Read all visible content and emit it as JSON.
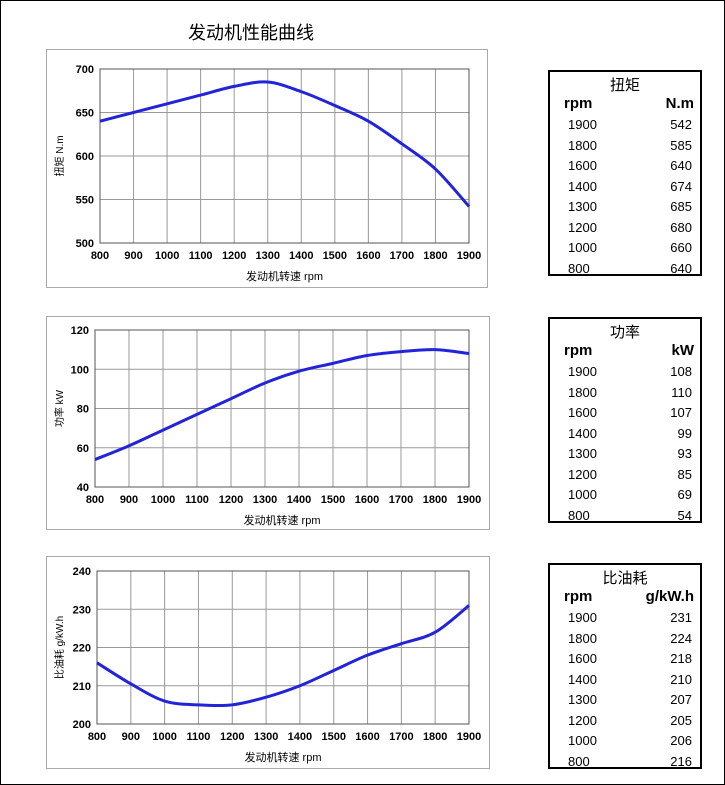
{
  "title": "发动机性能曲线",
  "chart_data": [
    {
      "type": "line",
      "xlabel": "发动机转速 rpm",
      "ylabel": "扭矩 N.m",
      "xlim": [
        800,
        1900
      ],
      "ylim": [
        500,
        700
      ],
      "xticks": [
        800,
        900,
        1000,
        1100,
        1200,
        1300,
        1400,
        1500,
        1600,
        1700,
        1800,
        1900
      ],
      "yticks": [
        500,
        550,
        600,
        650,
        700
      ],
      "grid": true,
      "color": "#2323d8",
      "x": [
        800,
        900,
        1000,
        1100,
        1200,
        1300,
        1400,
        1500,
        1600,
        1700,
        1800,
        1900
      ],
      "y": [
        640,
        650,
        660,
        670,
        680,
        685,
        674,
        658,
        640,
        614,
        585,
        542
      ]
    },
    {
      "type": "line",
      "xlabel": "发动机转速 rpm",
      "ylabel": "功率 kW",
      "xlim": [
        800,
        1900
      ],
      "ylim": [
        40,
        120
      ],
      "xticks": [
        800,
        900,
        1000,
        1100,
        1200,
        1300,
        1400,
        1500,
        1600,
        1700,
        1800,
        1900
      ],
      "yticks": [
        40,
        60,
        80,
        100,
        120
      ],
      "grid": true,
      "color": "#2323d8",
      "x": [
        800,
        900,
        1000,
        1100,
        1200,
        1300,
        1400,
        1500,
        1600,
        1700,
        1800,
        1900
      ],
      "y": [
        54,
        61,
        69,
        77,
        85,
        93,
        99,
        103,
        107,
        109,
        110,
        108
      ]
    },
    {
      "type": "line",
      "xlabel": "发动机转速 rpm",
      "ylabel": "比油耗 g/kW.h",
      "xlim": [
        800,
        1900
      ],
      "ylim": [
        200,
        240
      ],
      "xticks": [
        800,
        900,
        1000,
        1100,
        1200,
        1300,
        1400,
        1500,
        1600,
        1700,
        1800,
        1900
      ],
      "yticks": [
        200,
        210,
        220,
        230,
        240
      ],
      "grid": true,
      "color": "#2323d8",
      "x": [
        800,
        900,
        1000,
        1100,
        1200,
        1300,
        1400,
        1500,
        1600,
        1700,
        1800,
        1900
      ],
      "y": [
        216,
        210.5,
        206,
        205,
        205,
        207,
        210,
        214,
        218,
        221,
        224,
        231
      ]
    }
  ],
  "tables": [
    {
      "title": "扭矩",
      "col1": "rpm",
      "col2": "N.m",
      "rows": [
        [
          "1900",
          "542"
        ],
        [
          "1800",
          "585"
        ],
        [
          "1600",
          "640"
        ],
        [
          "1400",
          "674"
        ],
        [
          "1300",
          "685"
        ],
        [
          "1200",
          "680"
        ],
        [
          "1000",
          "660"
        ],
        [
          "800",
          "640"
        ]
      ]
    },
    {
      "title": "功率",
      "col1": "rpm",
      "col2": "kW",
      "rows": [
        [
          "1900",
          "108"
        ],
        [
          "1800",
          "110"
        ],
        [
          "1600",
          "107"
        ],
        [
          "1400",
          "99"
        ],
        [
          "1300",
          "93"
        ],
        [
          "1200",
          "85"
        ],
        [
          "1000",
          "69"
        ],
        [
          "800",
          "54"
        ]
      ]
    },
    {
      "title": "比油耗",
      "col1": "rpm",
      "col2": "g/kW.h",
      "rows": [
        [
          "1900",
          "231"
        ],
        [
          "1800",
          "224"
        ],
        [
          "1600",
          "218"
        ],
        [
          "1400",
          "210"
        ],
        [
          "1300",
          "207"
        ],
        [
          "1200",
          "205"
        ],
        [
          "1000",
          "206"
        ],
        [
          "800",
          "216"
        ]
      ]
    }
  ]
}
